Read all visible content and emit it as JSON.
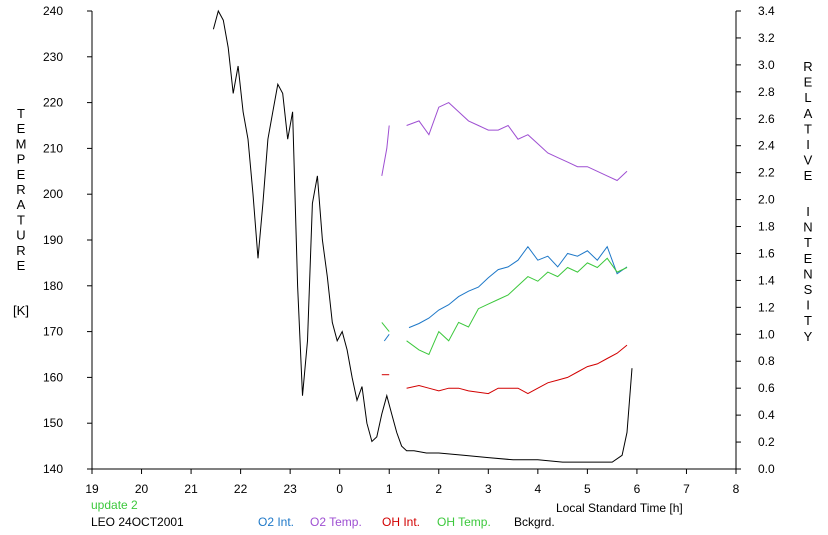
{
  "chart_data": {
    "type": "line",
    "xlabel": "Local Standard Time [h]",
    "x_tick_labels": [
      "19",
      "20",
      "21",
      "22",
      "23",
      "0",
      "1",
      "2",
      "3",
      "4",
      "5",
      "6",
      "7",
      "8"
    ],
    "x_tick_hours": [
      19,
      20,
      21,
      22,
      23,
      24,
      25,
      26,
      27,
      28,
      29,
      30,
      31,
      32
    ],
    "xlim": [
      19,
      32
    ],
    "left_axis": {
      "label_letters": [
        "T",
        "E",
        "M",
        "P",
        "E",
        "R",
        "A",
        "T",
        "U",
        "R",
        "E"
      ],
      "unit": "[K]",
      "ylim": [
        140,
        240
      ],
      "ticks": [
        "140",
        "150",
        "160",
        "170",
        "180",
        "190",
        "200",
        "210",
        "220",
        "230",
        "240"
      ]
    },
    "right_axis": {
      "label_letters": [
        "R",
        "E",
        "L",
        "A",
        "T",
        "I",
        "V",
        "E"
      ],
      "label_letters_2": [
        "I",
        "N",
        "T",
        "E",
        "N",
        "S",
        "I",
        "T",
        "Y"
      ],
      "ylim": [
        0.0,
        3.4
      ],
      "ticks": [
        "0.0",
        "0.2",
        "0.4",
        "0.6",
        "0.8",
        "1.0",
        "1.2",
        "1.4",
        "1.6",
        "1.8",
        "2.0",
        "2.2",
        "2.4",
        "2.6",
        "2.8",
        "3.0",
        "3.2",
        "3.4"
      ]
    },
    "annotations": {
      "update": "update 2",
      "station": "LEO 24OCT2001"
    },
    "legend": [
      "O2 Int.",
      "O2 Temp.",
      "OH Int.",
      "OH Temp.",
      "Bckgrd."
    ],
    "series": [
      {
        "name": "O2 Int.",
        "color": "#1e78c8",
        "axis": "right",
        "segments": [
          {
            "x": [
              24.9,
              25.0
            ],
            "y": [
              0.95,
              1.0
            ]
          },
          {
            "x": [
              25.4,
              25.6,
              25.8,
              26.0,
              26.2,
              26.4,
              26.6,
              26.8,
              27.0,
              27.2,
              27.4,
              27.6,
              27.8,
              28.0,
              28.2,
              28.4,
              28.6,
              28.8,
              29.0,
              29.2,
              29.4,
              29.6,
              29.8
            ],
            "y": [
              1.05,
              1.08,
              1.12,
              1.18,
              1.22,
              1.28,
              1.32,
              1.35,
              1.42,
              1.48,
              1.5,
              1.55,
              1.65,
              1.55,
              1.58,
              1.5,
              1.6,
              1.58,
              1.62,
              1.55,
              1.65,
              1.45,
              1.5
            ]
          }
        ]
      },
      {
        "name": "O2 Temp.",
        "color": "#9e4fd2",
        "axis": "left",
        "segments": [
          {
            "x": [
              24.85,
              24.95,
              25.0
            ],
            "y": [
              204,
              210,
              215
            ]
          },
          {
            "x": [
              25.35,
              25.6,
              25.8,
              26.0,
              26.2,
              26.4,
              26.6,
              26.8,
              27.0,
              27.2,
              27.4,
              27.6,
              27.8,
              28.0,
              28.2,
              28.4,
              28.6,
              28.8,
              29.0,
              29.2,
              29.4,
              29.6,
              29.8
            ],
            "y": [
              215,
              216,
              213,
              219,
              220,
              218,
              216,
              215,
              214,
              214,
              215,
              212,
              213,
              211,
              209,
              208,
              207,
              206,
              206,
              205,
              204,
              203,
              205
            ]
          }
        ]
      },
      {
        "name": "OH Int.",
        "color": "#d20000",
        "axis": "right",
        "segments": [
          {
            "x": [
              24.85,
              25.0
            ],
            "y": [
              0.7,
              0.7
            ]
          },
          {
            "x": [
              25.35,
              25.6,
              25.8,
              26.0,
              26.2,
              26.4,
              26.6,
              26.8,
              27.0,
              27.2,
              27.4,
              27.6,
              27.8,
              28.0,
              28.2,
              28.4,
              28.6,
              28.8,
              29.0,
              29.2,
              29.4,
              29.6,
              29.8
            ],
            "y": [
              0.6,
              0.62,
              0.6,
              0.58,
              0.6,
              0.6,
              0.58,
              0.57,
              0.56,
              0.6,
              0.6,
              0.6,
              0.56,
              0.6,
              0.64,
              0.66,
              0.68,
              0.72,
              0.76,
              0.78,
              0.82,
              0.86,
              0.92
            ]
          }
        ]
      },
      {
        "name": "OH Temp.",
        "color": "#3cc83c",
        "axis": "left",
        "segments": [
          {
            "x": [
              24.85,
              25.0
            ],
            "y": [
              172,
              170
            ]
          },
          {
            "x": [
              25.35,
              25.6,
              25.8,
              26.0,
              26.2,
              26.4,
              26.6,
              26.8,
              27.0,
              27.2,
              27.4,
              27.6,
              27.8,
              28.0,
              28.2,
              28.4,
              28.6,
              28.8,
              29.0,
              29.2,
              29.4,
              29.6,
              29.8
            ],
            "y": [
              168,
              166,
              165,
              170,
              168,
              172,
              171,
              175,
              176,
              177,
              178,
              180,
              182,
              181,
              183,
              182,
              184,
              183,
              185,
              184,
              186,
              183,
              184
            ]
          }
        ]
      },
      {
        "name": "Bckgrd.",
        "color": "#000000",
        "axis": "left",
        "segments": [
          {
            "x": [
              21.45,
              21.55,
              21.65,
              21.75,
              21.85,
              21.95,
              22.05,
              22.15,
              22.25,
              22.35,
              22.45,
              22.55,
              22.65,
              22.75,
              22.85,
              22.95,
              23.05,
              23.15,
              23.25,
              23.35,
              23.45,
              23.55,
              23.65,
              23.75,
              23.85,
              23.95,
              24.05,
              24.15,
              24.25,
              24.35,
              24.45,
              24.55,
              24.65,
              24.75,
              24.85,
              24.95,
              25.05,
              25.15,
              25.25,
              25.35,
              25.5,
              25.75,
              26.0,
              26.5,
              27.0,
              27.5,
              28.0,
              28.5,
              29.0,
              29.5,
              29.7,
              29.8,
              29.9
            ],
            "y": [
              236,
              240,
              238,
              232,
              222,
              228,
              218,
              212,
              200,
              186,
              198,
              212,
              218,
              224,
              222,
              212,
              218,
              180,
              156,
              168,
              198,
              204,
              190,
              182,
              172,
              168,
              170,
              166,
              160,
              155,
              158,
              150,
              146,
              147,
              152,
              156,
              152,
              148,
              145,
              144,
              144,
              143.5,
              143.5,
              143,
              142.5,
              142,
              142,
              141.5,
              141.5,
              141.5,
              143,
              148,
              162
            ]
          }
        ]
      }
    ]
  }
}
